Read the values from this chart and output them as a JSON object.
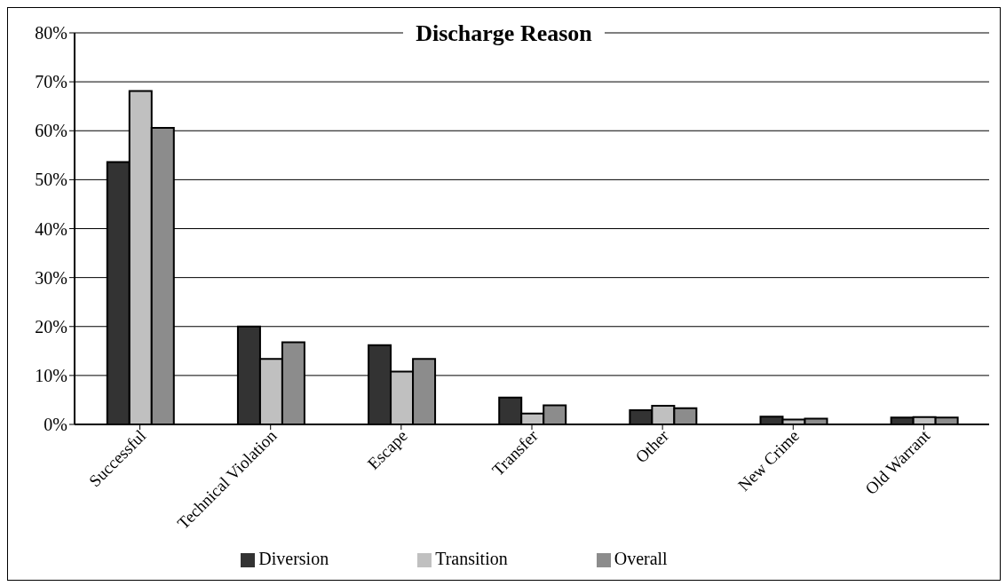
{
  "chart_data": {
    "type": "bar",
    "title": "Discharge Reason",
    "categories": [
      "Successful",
      "Technical Violation",
      "Escape",
      "Transfer",
      "Other",
      "New Crime",
      "Old Warrant"
    ],
    "series": [
      {
        "name": "Diversion",
        "color": "#333333",
        "values": [
          53.6,
          20,
          16.2,
          5.5,
          2.9,
          1.6,
          1.4
        ]
      },
      {
        "name": "Transition",
        "color": "#c0c0c0",
        "values": [
          68.1,
          13.4,
          10.8,
          2.2,
          3.8,
          1.0,
          1.5
        ]
      },
      {
        "name": "Overall",
        "color": "#8c8c8c",
        "values": [
          60.6,
          16.8,
          13.4,
          3.9,
          3.3,
          1.2,
          1.4
        ]
      }
    ],
    "ylim": [
      0,
      80
    ],
    "yticks": [
      {
        "value": 0,
        "label": "0%"
      },
      {
        "value": 10,
        "label": "10%"
      },
      {
        "value": 20,
        "label": "20%"
      },
      {
        "value": 30,
        "label": "30%"
      },
      {
        "value": 40,
        "label": "40%"
      },
      {
        "value": 50,
        "label": "50%"
      },
      {
        "value": 60,
        "label": "60%"
      },
      {
        "value": 70,
        "label": "70%"
      },
      {
        "value": 80,
        "label": "80%"
      }
    ],
    "grid": "y",
    "legend": "bottom"
  }
}
